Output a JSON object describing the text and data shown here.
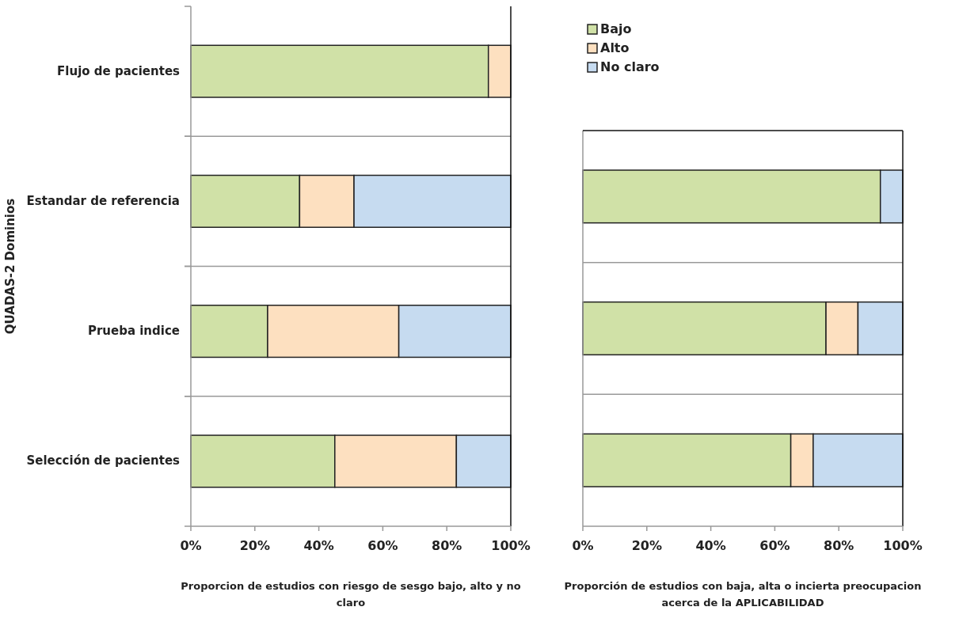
{
  "chart_data": [
    {
      "type": "bar",
      "orientation": "horizontal",
      "stacked": true,
      "ylabel": "QUADAS-2 Dominios",
      "xlabel": "Proporcion de estudios con riesgo de sesgo bajo, alto y no claro",
      "categories": [
        "Flujo de pacientes",
        "Estandar de referencia",
        "Prueba indice",
        "Selección de pacientes"
      ],
      "xlim": [
        0,
        100
      ],
      "xticks": [
        {
          "value": 0,
          "label": "0%"
        },
        {
          "value": 20,
          "label": "20%"
        },
        {
          "value": 40,
          "label": "40%"
        },
        {
          "value": 60,
          "label": "60%"
        },
        {
          "value": 80,
          "label": "80%"
        },
        {
          "value": 100,
          "label": "100%"
        }
      ],
      "grid": "y",
      "legend": false,
      "series": [
        {
          "color": "#d0e1a7",
          "values": [
            93,
            34,
            24,
            45
          ]
        },
        {
          "color": "#fde0c0",
          "values": [
            7,
            17,
            41,
            38
          ]
        },
        {
          "color": "#c6dbf0",
          "values": [
            0,
            49,
            35,
            17
          ]
        }
      ]
    },
    {
      "type": "bar",
      "orientation": "horizontal",
      "stacked": true,
      "xlabel": "Proporción de estudios con baja, alta o incierta preocupacion acerca de la APLICABILIDAD",
      "categories": [
        null,
        null,
        null
      ],
      "xlim": [
        0,
        100
      ],
      "xticks": [
        {
          "value": 0,
          "label": "0%"
        },
        {
          "value": 20,
          "label": "20%"
        },
        {
          "value": 40,
          "label": "40%"
        },
        {
          "value": 60,
          "label": "60%"
        },
        {
          "value": 80,
          "label": "80%"
        },
        {
          "value": 100,
          "label": "100%"
        }
      ],
      "grid": "y",
      "legend": "top left",
      "series": [
        {
          "name": "Bajo",
          "color": "#d0e1a7",
          "values": [
            93,
            76,
            65
          ]
        },
        {
          "name": "Alto",
          "color": "#fde0c0",
          "values": [
            0,
            10,
            7
          ]
        },
        {
          "name": "No claro",
          "color": "#c6dbf0",
          "values": [
            7,
            14,
            28
          ]
        }
      ]
    }
  ]
}
